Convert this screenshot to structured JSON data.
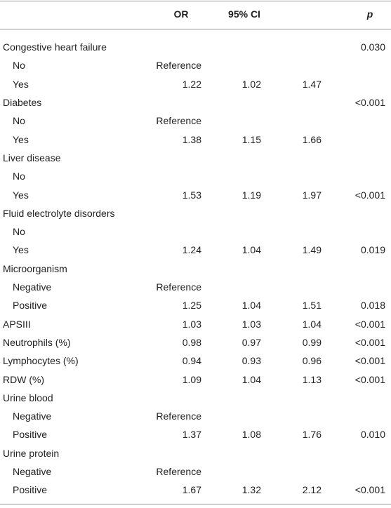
{
  "table": {
    "header": {
      "or": "OR",
      "ci": "95% CI",
      "p": "p"
    },
    "rows": [
      {
        "label": "Congestive heart failure",
        "p": "0.030",
        "rows": [
          {
            "label": "No",
            "or": "Reference"
          },
          {
            "label": "Yes",
            "or": "1.22",
            "ci_low": "1.02",
            "ci_high": "1.47"
          }
        ]
      },
      {
        "label": "Diabetes",
        "p": "<0.001",
        "rows": [
          {
            "label": "No",
            "or": "Reference"
          },
          {
            "label": "Yes",
            "or": "1.38",
            "ci_low": "1.15",
            "ci_high": "1.66"
          }
        ]
      },
      {
        "label": "Liver disease",
        "rows": [
          {
            "label": "No"
          },
          {
            "label": "Yes",
            "or": "1.53",
            "ci_low": "1.19",
            "ci_high": "1.97",
            "p": "<0.001"
          }
        ]
      },
      {
        "label": "Fluid electrolyte disorders",
        "rows": [
          {
            "label": "No"
          },
          {
            "label": "Yes",
            "or": "1.24",
            "ci_low": "1.04",
            "ci_high": "1.49",
            "p": "0.019"
          }
        ]
      },
      {
        "label": "Microorganism",
        "rows": [
          {
            "label": "Negative",
            "or": "Reference"
          },
          {
            "label": "Positive",
            "or": "1.25",
            "ci_low": "1.04",
            "ci_high": "1.51",
            "p": "0.018"
          }
        ]
      },
      {
        "label": "APSIII",
        "or": "1.03",
        "ci_low": "1.03",
        "ci_high": "1.04",
        "p": "<0.001"
      },
      {
        "label": "Neutrophils (%)",
        "or": "0.98",
        "ci_low": "0.97",
        "ci_high": "0.99",
        "p": "<0.001"
      },
      {
        "label": "Lymphocytes (%)",
        "or": "0.94",
        "ci_low": "0.93",
        "ci_high": "0.96",
        "p": "<0.001"
      },
      {
        "label": "RDW (%)",
        "or": "1.09",
        "ci_low": "1.04",
        "ci_high": "1.13",
        "p": "<0.001"
      },
      {
        "label": "Urine blood",
        "rows": [
          {
            "label": "Negative",
            "or": "Reference"
          },
          {
            "label": "Positive",
            "or": "1.37",
            "ci_low": "1.08",
            "ci_high": "1.76",
            "p": "0.010"
          }
        ]
      },
      {
        "label": "Urine protein",
        "rows": [
          {
            "label": "Negative",
            "or": "Reference"
          },
          {
            "label": "Positive",
            "or": "1.67",
            "ci_low": "1.32",
            "ci_high": "2.12",
            "p": "<0.001"
          }
        ]
      }
    ]
  }
}
